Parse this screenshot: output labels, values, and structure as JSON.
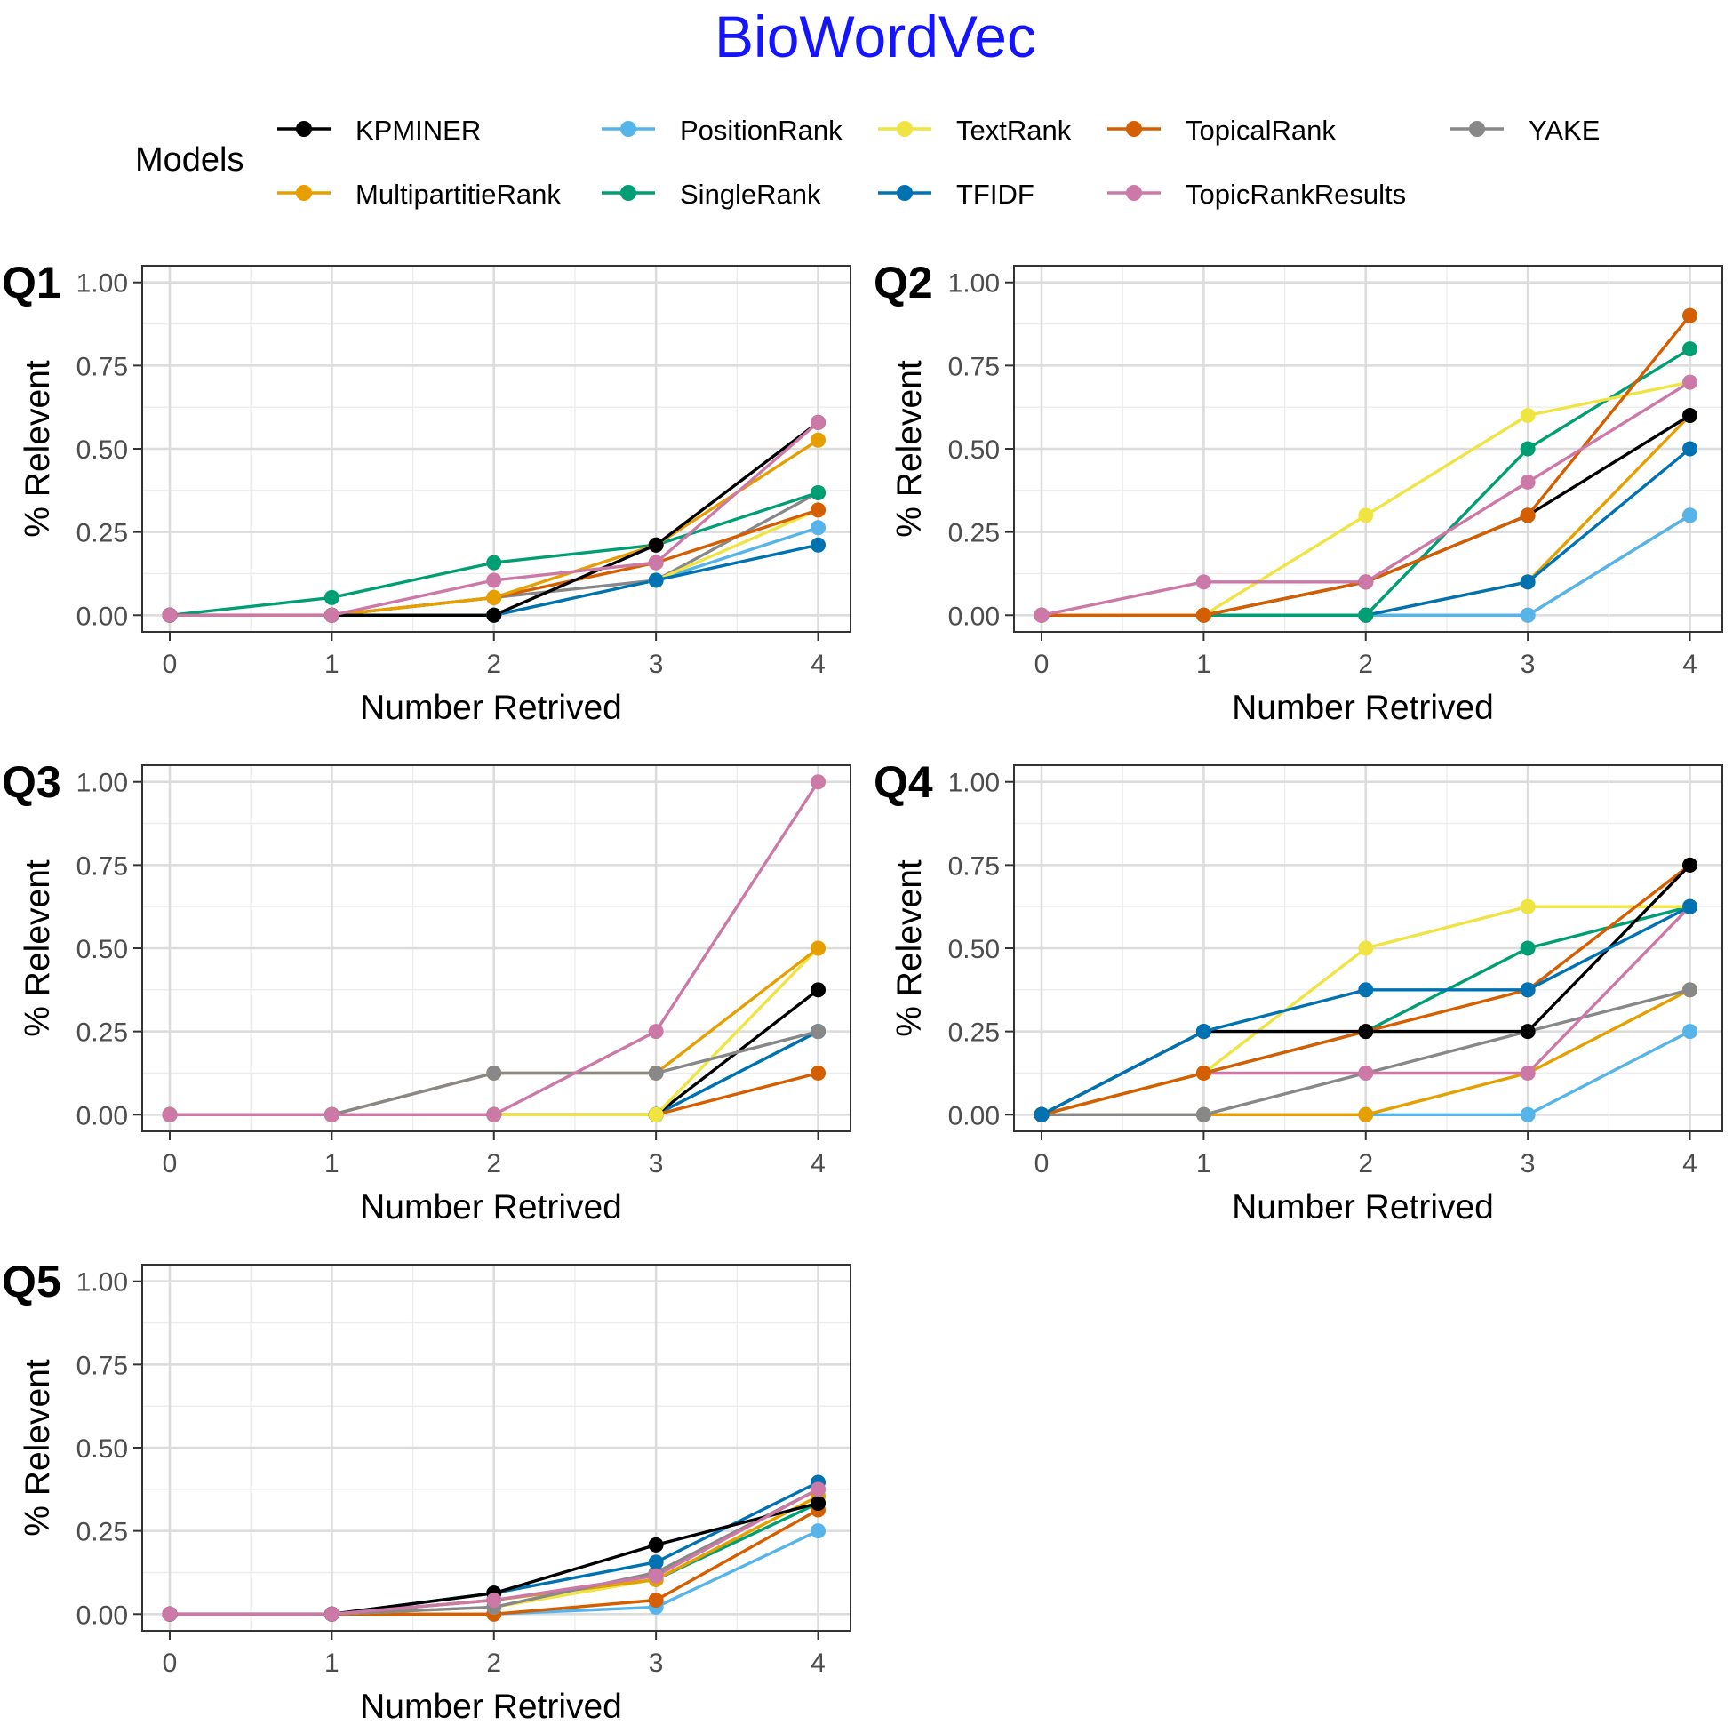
{
  "figure_title": "BioWordVec",
  "title_color": "#1414FF",
  "legend": {
    "title": "Models",
    "entries": [
      {
        "key": "KPMINER",
        "label": "KPMINER"
      },
      {
        "key": "PositionRank",
        "label": "PositionRank"
      },
      {
        "key": "TextRank",
        "label": "TextRank"
      },
      {
        "key": "TopicalRank",
        "label": "TopicalRank"
      },
      {
        "key": "YAKE",
        "label": "YAKE"
      },
      {
        "key": "MultipartitieRank",
        "label": "MultipartitieRank"
      },
      {
        "key": "SingleRank",
        "label": "SingleRank"
      },
      {
        "key": "TFIDF",
        "label": "TFIDF"
      },
      {
        "key": "TopicRankResults",
        "label": "TopicRankResults"
      }
    ]
  },
  "series_colors": {
    "KPMINER": "#000000",
    "PositionRank": "#56B4E9",
    "TextRank": "#F0E442",
    "TopicalRank": "#D55E00",
    "YAKE": "#888888",
    "MultipartitieRank": "#E69F00",
    "SingleRank": "#009E73",
    "TFIDF": "#0072B2",
    "TopicRankResults": "#CC79A7"
  },
  "chart_data": [
    {
      "type": "line",
      "panel_label": "Q1",
      "xlabel": "Number Retrived",
      "ylabel": "% Relevent",
      "x": [
        0,
        1,
        2,
        3,
        4
      ],
      "xticks": [
        "0",
        "1",
        "2",
        "3",
        "4"
      ],
      "yticks": [
        "0.00",
        "0.25",
        "0.50",
        "0.75",
        "1.00"
      ],
      "xlim": [
        -0.17,
        4.2
      ],
      "ylim": [
        -0.05,
        1.05
      ],
      "grid": true,
      "series": [
        {
          "key": "YAKE",
          "values": [
            0,
            0,
            0.053,
            0.105,
            0.368
          ]
        },
        {
          "key": "PositionRank",
          "values": [
            0,
            0,
            0,
            0.105,
            0.263
          ]
        },
        {
          "key": "TextRank",
          "values": [
            0,
            0,
            0,
            0.105,
            0.316
          ]
        },
        {
          "key": "TFIDF",
          "values": [
            0,
            0,
            0,
            0.105,
            0.211
          ]
        },
        {
          "key": "TopicalRank",
          "values": [
            0,
            0,
            0.053,
            0.158,
            0.316
          ]
        },
        {
          "key": "SingleRank",
          "values": [
            0,
            0.053,
            0.158,
            0.211,
            0.368
          ]
        },
        {
          "key": "MultipartitieRank",
          "values": [
            0,
            0,
            0.053,
            0.211,
            0.526
          ]
        },
        {
          "key": "KPMINER",
          "values": [
            0,
            0,
            0,
            0.211,
            0.579
          ]
        },
        {
          "key": "TopicRankResults",
          "values": [
            0,
            0,
            0.105,
            0.158,
            0.579
          ]
        }
      ]
    },
    {
      "type": "line",
      "panel_label": "Q2",
      "xlabel": "Number Retrived",
      "ylabel": "% Relevent",
      "x": [
        0,
        1,
        2,
        3,
        4
      ],
      "xticks": [
        "0",
        "1",
        "2",
        "3",
        "4"
      ],
      "yticks": [
        "0.00",
        "0.25",
        "0.50",
        "0.75",
        "1.00"
      ],
      "xlim": [
        -0.17,
        4.2
      ],
      "ylim": [
        -0.05,
        1.05
      ],
      "grid": true,
      "series": [
        {
          "key": "YAKE",
          "values": [
            0,
            0,
            0,
            0,
            0.3
          ]
        },
        {
          "key": "PositionRank",
          "values": [
            0,
            0,
            0,
            0,
            0.3
          ]
        },
        {
          "key": "MultipartitieRank",
          "values": [
            0,
            0,
            0,
            0.1,
            0.6
          ]
        },
        {
          "key": "TFIDF",
          "values": [
            0,
            0,
            0,
            0.1,
            0.5
          ]
        },
        {
          "key": "KPMINER",
          "values": [
            0,
            0,
            0.1,
            0.3,
            0.6
          ]
        },
        {
          "key": "SingleRank",
          "values": [
            0,
            0,
            0,
            0.5,
            0.8
          ]
        },
        {
          "key": "TextRank",
          "values": [
            0,
            0,
            0.3,
            0.6,
            0.7
          ]
        },
        {
          "key": "TopicalRank",
          "values": [
            0,
            0,
            0.1,
            0.3,
            0.9
          ]
        },
        {
          "key": "TopicRankResults",
          "values": [
            0,
            0.1,
            0.1,
            0.4,
            0.7
          ]
        }
      ]
    },
    {
      "type": "line",
      "panel_label": "Q3",
      "xlabel": "Number Retrived",
      "ylabel": "% Relevent",
      "x": [
        0,
        1,
        2,
        3,
        4
      ],
      "xticks": [
        "0",
        "1",
        "2",
        "3",
        "4"
      ],
      "yticks": [
        "0.00",
        "0.25",
        "0.50",
        "0.75",
        "1.00"
      ],
      "xlim": [
        -0.17,
        4.2
      ],
      "ylim": [
        -0.05,
        1.05
      ],
      "grid": true,
      "series": [
        {
          "key": "PositionRank",
          "values": [
            0,
            0,
            0,
            0,
            0.25
          ]
        },
        {
          "key": "SingleRank",
          "values": [
            0,
            0,
            0,
            0,
            0.25
          ]
        },
        {
          "key": "TFIDF",
          "values": [
            0,
            0,
            0,
            0,
            0.25
          ]
        },
        {
          "key": "TopicalRank",
          "values": [
            0,
            0,
            0,
            0,
            0.125
          ]
        },
        {
          "key": "KPMINER",
          "values": [
            0,
            0,
            0,
            0,
            0.375
          ]
        },
        {
          "key": "TextRank",
          "values": [
            0,
            0,
            0,
            0,
            0.5
          ]
        },
        {
          "key": "MultipartitieRank",
          "values": [
            0,
            0,
            0.125,
            0.125,
            0.5
          ]
        },
        {
          "key": "YAKE",
          "values": [
            0,
            0,
            0.125,
            0.125,
            0.25
          ]
        },
        {
          "key": "TopicRankResults",
          "values": [
            0,
            0,
            0,
            0.25,
            1.0
          ]
        }
      ]
    },
    {
      "type": "line",
      "panel_label": "Q4",
      "xlabel": "Number Retrived",
      "ylabel": "% Relevent",
      "x": [
        0,
        1,
        2,
        3,
        4
      ],
      "xticks": [
        "0",
        "1",
        "2",
        "3",
        "4"
      ],
      "yticks": [
        "0.00",
        "0.25",
        "0.50",
        "0.75",
        "1.00"
      ],
      "xlim": [
        -0.17,
        4.2
      ],
      "ylim": [
        -0.05,
        1.05
      ],
      "grid": true,
      "series": [
        {
          "key": "PositionRank",
          "values": [
            0,
            0,
            0,
            0,
            0.25
          ]
        },
        {
          "key": "MultipartitieRank",
          "values": [
            0,
            0,
            0,
            0.125,
            0.375
          ]
        },
        {
          "key": "YAKE",
          "values": [
            0,
            0,
            0.125,
            0.25,
            0.375
          ]
        },
        {
          "key": "TopicRankResults",
          "values": [
            0,
            0.125,
            0.125,
            0.125,
            0.625
          ]
        },
        {
          "key": "SingleRank",
          "values": [
            0,
            0.125,
            0.25,
            0.5,
            0.625
          ]
        },
        {
          "key": "TextRank",
          "values": [
            0,
            0.125,
            0.5,
            0.625,
            0.625
          ]
        },
        {
          "key": "TopicalRank",
          "values": [
            0,
            0.125,
            0.25,
            0.375,
            0.75
          ]
        },
        {
          "key": "KPMINER",
          "values": [
            0,
            0.25,
            0.25,
            0.25,
            0.75
          ]
        },
        {
          "key": "TFIDF",
          "values": [
            0,
            0.25,
            0.375,
            0.375,
            0.625
          ]
        }
      ]
    },
    {
      "type": "line",
      "panel_label": "Q5",
      "xlabel": "Number Retrived",
      "ylabel": "% Relevent",
      "x": [
        0,
        1,
        2,
        3,
        4
      ],
      "xticks": [
        "0",
        "1",
        "2",
        "3",
        "4"
      ],
      "yticks": [
        "0.00",
        "0.25",
        "0.50",
        "0.75",
        "1.00"
      ],
      "xlim": [
        -0.17,
        4.2
      ],
      "ylim": [
        -0.05,
        1.05
      ],
      "grid": true,
      "series": [
        {
          "key": "PositionRank",
          "values": [
            0,
            0,
            0,
            0.021,
            0.25
          ]
        },
        {
          "key": "TopicalRank",
          "values": [
            0,
            0,
            0,
            0.042,
            0.313
          ]
        },
        {
          "key": "TextRank",
          "values": [
            0,
            0,
            0.021,
            0.104,
            0.354
          ]
        },
        {
          "key": "SingleRank",
          "values": [
            0,
            0,
            0.042,
            0.104,
            0.333
          ]
        },
        {
          "key": "MultipartitieRank",
          "values": [
            0,
            0,
            0.042,
            0.104,
            0.354
          ]
        },
        {
          "key": "YAKE",
          "values": [
            0,
            0,
            0.021,
            0.125,
            0.375
          ]
        },
        {
          "key": "TFIDF",
          "values": [
            0,
            0,
            0.063,
            0.156,
            0.396
          ]
        },
        {
          "key": "KPMINER",
          "values": [
            0,
            0,
            0.063,
            0.208,
            0.333
          ]
        },
        {
          "key": "TopicRankResults",
          "values": [
            0,
            0,
            0.042,
            0.115,
            0.375
          ]
        }
      ]
    }
  ]
}
